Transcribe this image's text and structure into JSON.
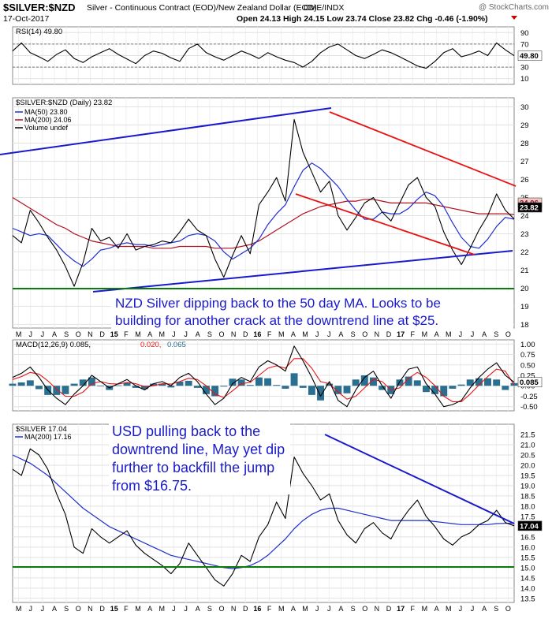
{
  "header": {
    "symbol": "$SILVER:$NZD",
    "description": "Silver - Continuous Contract (EOD)/New Zealand Dollar (EOD)",
    "exchange": "CME/INDX",
    "watermark": "@ StockCharts.com",
    "date": "17-Oct-2017",
    "ohlc": "Open 24.13  High 24.15  Low 23.74  Close 23.82  Chg -0.46 (-1.90%)"
  },
  "colors": {
    "price": "#000000",
    "ma50": "#1f2fcf",
    "ma200": "#b01020",
    "trendline_blue": "#1a1acc",
    "trendline_red": "#e81414",
    "support_green": "#0a7a0a",
    "annotation_text": "#1a1acc",
    "histogram": "#2a6f8f",
    "rsi_band": "#3a8a3a",
    "panel_border": "#888888"
  },
  "chart_data": [
    {
      "type": "line",
      "name_label": "RSI(14) 49.80",
      "last_value_label": "49.80",
      "y_ticks": [
        "90",
        "70",
        "50",
        "30",
        "10"
      ],
      "ylim": [
        0,
        100
      ],
      "reference_levels": [
        70,
        30
      ],
      "series": [
        {
          "name": "RSI(14)",
          "values": [
            58,
            72,
            55,
            48,
            40,
            52,
            60,
            45,
            38,
            48,
            55,
            62,
            52,
            44,
            36,
            50,
            58,
            54,
            46,
            40,
            62,
            70,
            55,
            48,
            42,
            50,
            58,
            52,
            45,
            55,
            48,
            42,
            38,
            30,
            40,
            55,
            65,
            70,
            60,
            50,
            45,
            52,
            60,
            55,
            48,
            40,
            32,
            28,
            40,
            55,
            62,
            48,
            52,
            58,
            50,
            72,
            60,
            49.8
          ]
        }
      ]
    },
    {
      "type": "line",
      "name_label": "$SILVER:$NZD (Daily) 23.82",
      "legend": [
        "MA(50) 23.80",
        "MA(200) 24.06",
        "Volume undef"
      ],
      "last_value_labels": [
        "24.06",
        "23.82"
      ],
      "y_ticks": [
        "30",
        "29",
        "28",
        "27",
        "26",
        "25",
        "24",
        "23",
        "22",
        "21",
        "20",
        "19",
        "18"
      ],
      "ylim": [
        17.8,
        30.5
      ],
      "x_labels": [
        "M",
        "J",
        "J",
        "A",
        "S",
        "O",
        "N",
        "D",
        "15",
        "F",
        "M",
        "A",
        "M",
        "J",
        "J",
        "A",
        "S",
        "O",
        "N",
        "D",
        "16",
        "F",
        "M",
        "A",
        "M",
        "J",
        "J",
        "A",
        "S",
        "O",
        "N",
        "D",
        "17",
        "F",
        "M",
        "A",
        "M",
        "J",
        "J",
        "A",
        "S",
        "O"
      ],
      "annotation": [
        "NZD Silver dipping back to the 50 day MA. Looks to be",
        "building for another crack at the downtrend line at $25."
      ],
      "series": [
        {
          "name": "$SILVER:$NZD",
          "values": [
            22.9,
            22.5,
            24.3,
            23.6,
            22.8,
            22.1,
            21.2,
            20.1,
            21.4,
            23.3,
            22.6,
            22.8,
            22.2,
            23.0,
            22.1,
            22.3,
            22.4,
            22.6,
            22.5,
            23.1,
            23.8,
            23.2,
            22.9,
            21.6,
            20.6,
            21.8,
            22.9,
            21.9,
            24.6,
            25.3,
            26.1,
            24.8,
            29.3,
            27.5,
            26.4,
            25.3,
            25.9,
            24.0,
            23.2,
            23.9,
            24.7,
            25.0,
            24.2,
            23.7,
            24.7,
            25.7,
            26.1,
            25.0,
            24.5,
            23.1,
            22.1,
            21.3,
            22.2,
            23.2,
            24.0,
            25.2,
            24.3,
            23.82
          ]
        },
        {
          "name": "MA(50)",
          "values": [
            23.3,
            23.1,
            22.9,
            23.0,
            22.9,
            22.4,
            21.9,
            21.5,
            21.2,
            21.6,
            22.1,
            22.2,
            22.4,
            22.5,
            22.4,
            22.4,
            22.3,
            22.4,
            22.5,
            22.6,
            22.9,
            23.0,
            22.9,
            22.6,
            22.0,
            21.6,
            21.9,
            22.2,
            22.7,
            23.5,
            24.1,
            24.6,
            25.6,
            26.5,
            26.9,
            26.6,
            26.1,
            25.6,
            24.9,
            24.3,
            23.8,
            23.8,
            24.2,
            24.1,
            24.1,
            24.4,
            24.9,
            25.3,
            25.1,
            24.5,
            23.6,
            22.8,
            22.3,
            22.2,
            22.7,
            23.4,
            23.9,
            23.8
          ]
        },
        {
          "name": "MA(200)",
          "values": [
            25.0,
            24.7,
            24.4,
            24.1,
            23.8,
            23.5,
            23.3,
            23.0,
            22.8,
            22.6,
            22.5,
            22.4,
            22.3,
            22.3,
            22.3,
            22.3,
            22.2,
            22.2,
            22.2,
            22.3,
            22.3,
            22.3,
            22.3,
            22.2,
            22.2,
            22.2,
            22.3,
            22.4,
            22.6,
            22.9,
            23.2,
            23.5,
            23.8,
            24.1,
            24.3,
            24.5,
            24.6,
            24.7,
            24.8,
            24.8,
            24.9,
            24.9,
            24.8,
            24.7,
            24.7,
            24.7,
            24.7,
            24.7,
            24.6,
            24.5,
            24.4,
            24.3,
            24.2,
            24.1,
            24.1,
            24.1,
            24.1,
            24.06
          ]
        }
      ]
    },
    {
      "type": "line",
      "name_label_prefix": "MACD(12,26,9) 0.085,",
      "name_label_signal": "0.020,",
      "name_label_hist": "0.065",
      "last_value_label": "0.085",
      "y_ticks": [
        "1.00",
        "0.75",
        "0.50",
        "0.25",
        "0.00",
        "-0.25",
        "-0.50"
      ],
      "ylim": [
        -0.6,
        1.1
      ],
      "series": [
        {
          "name": "MACD",
          "values": [
            0.2,
            0.3,
            0.45,
            0.2,
            -0.1,
            -0.3,
            -0.45,
            -0.2,
            0.0,
            0.25,
            0.1,
            -0.05,
            0.05,
            0.15,
            0.0,
            -0.1,
            0.05,
            0.1,
            0.0,
            0.2,
            0.3,
            0.1,
            -0.2,
            -0.45,
            -0.3,
            0.05,
            0.2,
            0.1,
            0.45,
            0.6,
            0.5,
            0.35,
            0.95,
            0.6,
            0.2,
            -0.25,
            0.1,
            -0.35,
            -0.5,
            -0.1,
            0.2,
            0.35,
            0.0,
            -0.3,
            0.1,
            0.4,
            0.45,
            0.05,
            -0.2,
            -0.5,
            -0.45,
            -0.35,
            -0.05,
            0.2,
            0.4,
            0.55,
            0.25,
            0.085
          ]
        },
        {
          "name": "Signal",
          "values": [
            0.15,
            0.22,
            0.32,
            0.28,
            0.12,
            -0.08,
            -0.25,
            -0.25,
            -0.15,
            0.05,
            0.1,
            0.05,
            0.04,
            0.08,
            0.05,
            -0.02,
            0.0,
            0.05,
            0.04,
            0.1,
            0.18,
            0.15,
            0.0,
            -0.2,
            -0.28,
            -0.12,
            0.05,
            0.08,
            0.25,
            0.42,
            0.48,
            0.42,
            0.65,
            0.65,
            0.42,
            0.1,
            0.05,
            -0.15,
            -0.32,
            -0.25,
            -0.05,
            0.15,
            0.1,
            -0.1,
            -0.05,
            0.18,
            0.32,
            0.2,
            0.0,
            -0.25,
            -0.38,
            -0.38,
            -0.2,
            0.02,
            0.22,
            0.4,
            0.35,
            0.02
          ]
        }
      ]
    },
    {
      "type": "line",
      "name_label": "$SILVER 17.04",
      "legend": [
        "MA(200) 17.16"
      ],
      "last_value_labels": [
        "17.04"
      ],
      "y_ticks": [
        "21.5",
        "21.0",
        "20.5",
        "20.0",
        "19.5",
        "19.0",
        "18.5",
        "18.0",
        "17.5",
        "17.0",
        "16.5",
        "16.0",
        "15.5",
        "15.0",
        "14.5",
        "14.0",
        "13.5"
      ],
      "ylim": [
        13.3,
        22.0
      ],
      "x_labels": [
        "M",
        "J",
        "J",
        "A",
        "S",
        "O",
        "N",
        "D",
        "15",
        "F",
        "M",
        "A",
        "M",
        "J",
        "J",
        "A",
        "S",
        "O",
        "N",
        "D",
        "16",
        "F",
        "M",
        "A",
        "M",
        "J",
        "J",
        "A",
        "S",
        "O",
        "N",
        "D",
        "17",
        "F",
        "M",
        "A",
        "M",
        "J",
        "J",
        "A",
        "S",
        "O"
      ],
      "annotation": [
        "USD pulling back to the",
        "downtrend line, May yet dip",
        "further to backfill the jump",
        "from $16.75."
      ],
      "series": [
        {
          "name": "$SILVER",
          "values": [
            19.8,
            19.5,
            20.8,
            20.5,
            19.8,
            18.6,
            17.6,
            16.0,
            15.7,
            16.9,
            16.5,
            16.2,
            16.5,
            16.8,
            16.1,
            15.7,
            15.4,
            15.1,
            14.7,
            15.2,
            16.2,
            15.6,
            15.0,
            14.4,
            14.1,
            14.7,
            15.6,
            15.3,
            16.5,
            17.1,
            18.2,
            17.4,
            20.4,
            19.6,
            19.0,
            18.3,
            18.6,
            17.3,
            16.6,
            16.2,
            16.9,
            17.2,
            16.7,
            16.4,
            17.2,
            17.8,
            18.3,
            17.5,
            17.0,
            16.4,
            16.1,
            16.5,
            16.7,
            17.1,
            17.3,
            17.8,
            17.2,
            17.04
          ]
        },
        {
          "name": "MA(200)",
          "values": [
            20.5,
            20.3,
            20.1,
            19.8,
            19.5,
            19.1,
            18.7,
            18.3,
            17.9,
            17.6,
            17.3,
            17.0,
            16.8,
            16.6,
            16.4,
            16.2,
            16.0,
            15.8,
            15.6,
            15.5,
            15.4,
            15.3,
            15.2,
            15.1,
            15.0,
            14.95,
            15.0,
            15.1,
            15.3,
            15.6,
            16.0,
            16.4,
            16.9,
            17.3,
            17.6,
            17.8,
            17.9,
            17.9,
            17.8,
            17.7,
            17.6,
            17.5,
            17.4,
            17.3,
            17.3,
            17.3,
            17.3,
            17.3,
            17.25,
            17.2,
            17.15,
            17.1,
            17.1,
            17.1,
            17.1,
            17.15,
            17.16,
            17.16
          ]
        }
      ]
    }
  ]
}
